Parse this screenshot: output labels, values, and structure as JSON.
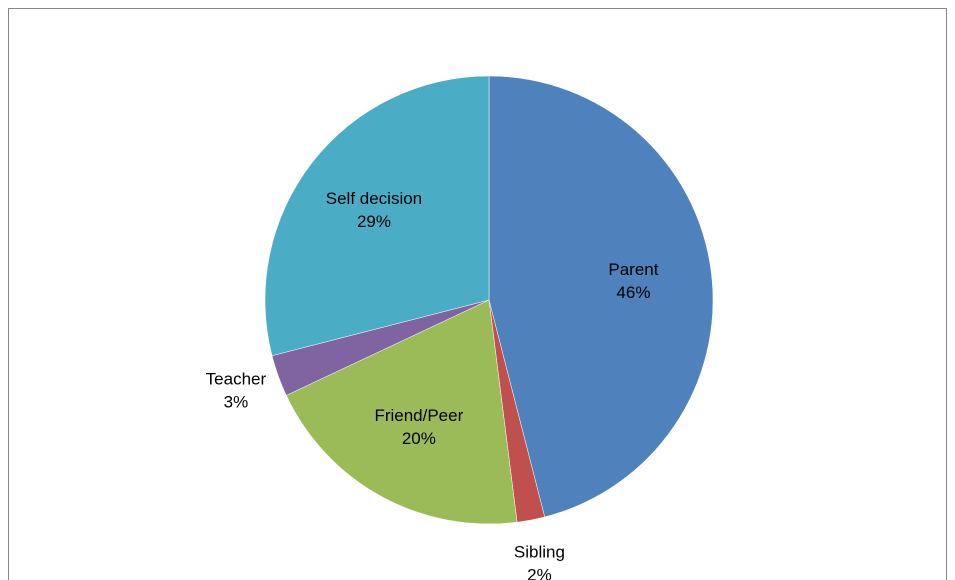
{
  "chart_data": {
    "type": "pie",
    "categories": [
      "Parent",
      "Sibling",
      "Friend/Peer",
      "Teacher",
      "Self decision"
    ],
    "values": [
      46,
      2,
      20,
      3,
      29
    ],
    "value_labels": [
      "46%",
      "2%",
      "20%",
      "3%",
      "29%"
    ],
    "colors": [
      "#4f81bd",
      "#c0504d",
      "#9bbb59",
      "#8064a2",
      "#4bacc6"
    ]
  }
}
